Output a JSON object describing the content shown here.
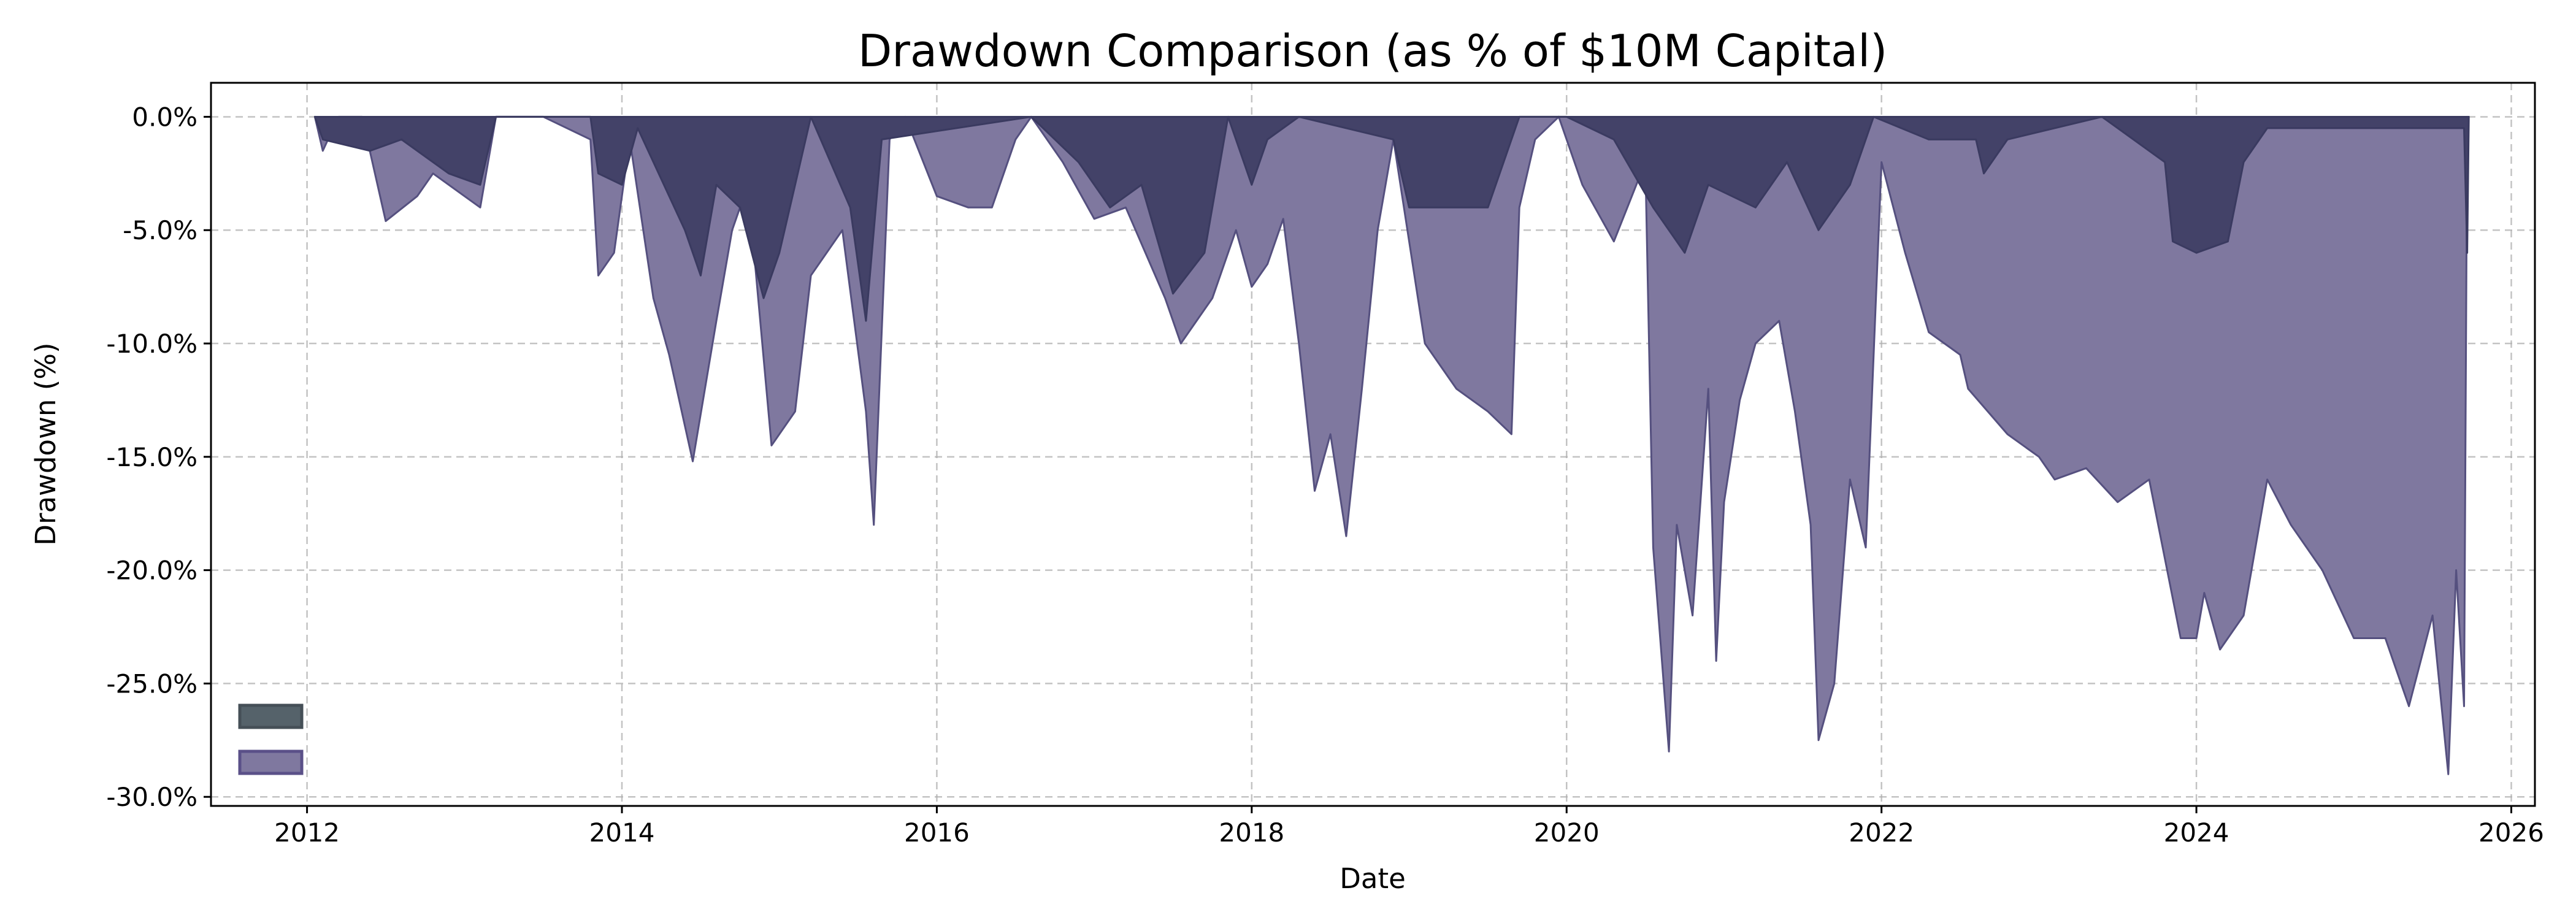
{
  "chart_data": {
    "type": "area",
    "title": "Drawdown Comparison (as % of $10M Capital)",
    "xlabel": "Date",
    "ylabel": "Drawdown (%)",
    "xlim": [
      2011.39,
      2026.15
    ],
    "ylim": [
      -30.4,
      1.5
    ],
    "grid": true,
    "legend_placement": "lower-left",
    "x_ticks": [
      2012,
      2014,
      2016,
      2018,
      2020,
      2022,
      2024,
      2026
    ],
    "x_tick_labels": [
      "2012",
      "2014",
      "2016",
      "2018",
      "2020",
      "2022",
      "2024",
      "2026"
    ],
    "y_ticks": [
      0,
      -5,
      -10,
      -15,
      -20,
      -25,
      -30
    ],
    "y_tick_labels": [
      "0.0%",
      "-5.0%",
      "-10.0%",
      "-15.0%",
      "-20.0%",
      "-25.0%",
      "-30.0%"
    ],
    "series": [
      {
        "color": "#7f789f",
        "edge": "#55507f",
        "points": [
          [
            2012.05,
            0
          ],
          [
            2012.1,
            -1.5
          ],
          [
            2012.2,
            0
          ],
          [
            2012.35,
            0
          ],
          [
            2012.5,
            -4.6
          ],
          [
            2012.7,
            -3.5
          ],
          [
            2012.8,
            -2.5
          ],
          [
            2013.0,
            -3.5
          ],
          [
            2013.1,
            -4.0
          ],
          [
            2013.2,
            0
          ],
          [
            2013.5,
            0
          ],
          [
            2013.8,
            -1
          ],
          [
            2013.85,
            -7
          ],
          [
            2013.95,
            -6
          ],
          [
            2014.05,
            -1
          ],
          [
            2014.2,
            -8
          ],
          [
            2014.3,
            -10.5
          ],
          [
            2014.45,
            -15.2
          ],
          [
            2014.6,
            -9
          ],
          [
            2014.7,
            -5
          ],
          [
            2014.8,
            -3
          ],
          [
            2014.95,
            -14.5
          ],
          [
            2015.1,
            -13
          ],
          [
            2015.2,
            -7
          ],
          [
            2015.4,
            -5
          ],
          [
            2015.55,
            -13
          ],
          [
            2015.6,
            -18
          ],
          [
            2015.7,
            -1
          ],
          [
            2015.8,
            0
          ],
          [
            2016.0,
            -3.5
          ],
          [
            2016.2,
            -4
          ],
          [
            2016.35,
            -4
          ],
          [
            2016.5,
            -1
          ],
          [
            2016.6,
            0
          ],
          [
            2016.8,
            -2
          ],
          [
            2017.0,
            -4.5
          ],
          [
            2017.2,
            -4
          ],
          [
            2017.45,
            -8
          ],
          [
            2017.55,
            -10
          ],
          [
            2017.75,
            -8
          ],
          [
            2017.9,
            -5
          ],
          [
            2018.0,
            -7.5
          ],
          [
            2018.1,
            -6.5
          ],
          [
            2018.2,
            -4.5
          ],
          [
            2018.3,
            -10
          ],
          [
            2018.4,
            -16.5
          ],
          [
            2018.5,
            -14
          ],
          [
            2018.6,
            -18.5
          ],
          [
            2018.7,
            -12
          ],
          [
            2018.8,
            -5
          ],
          [
            2018.9,
            -1
          ],
          [
            2019.1,
            -10
          ],
          [
            2019.3,
            -12
          ],
          [
            2019.5,
            -13
          ],
          [
            2019.65,
            -14
          ],
          [
            2019.7,
            -4
          ],
          [
            2019.8,
            -1
          ],
          [
            2019.95,
            0
          ],
          [
            2020.1,
            -3
          ],
          [
            2020.3,
            -5.5
          ],
          [
            2020.5,
            -2
          ],
          [
            2020.55,
            -19
          ],
          [
            2020.65,
            -28
          ],
          [
            2020.7,
            -18
          ],
          [
            2020.8,
            -22
          ],
          [
            2020.9,
            -12
          ],
          [
            2020.95,
            -24
          ],
          [
            2021.0,
            -17
          ],
          [
            2021.1,
            -12.5
          ],
          [
            2021.2,
            -10
          ],
          [
            2021.35,
            -9
          ],
          [
            2021.45,
            -13
          ],
          [
            2021.55,
            -18
          ],
          [
            2021.6,
            -27.5
          ],
          [
            2021.7,
            -25
          ],
          [
            2021.8,
            -16
          ],
          [
            2021.9,
            -19
          ],
          [
            2022.0,
            -2
          ],
          [
            2022.15,
            -6
          ],
          [
            2022.3,
            -9.5
          ],
          [
            2022.5,
            -10.5
          ],
          [
            2022.55,
            -12
          ],
          [
            2022.8,
            -14
          ],
          [
            2023.0,
            -15
          ],
          [
            2023.1,
            -16
          ],
          [
            2023.3,
            -15.5
          ],
          [
            2023.5,
            -17
          ],
          [
            2023.7,
            -16
          ],
          [
            2023.9,
            -23
          ],
          [
            2024.0,
            -23
          ],
          [
            2024.05,
            -21
          ],
          [
            2024.15,
            -23.5
          ],
          [
            2024.3,
            -22
          ],
          [
            2024.45,
            -16
          ],
          [
            2024.6,
            -18
          ],
          [
            2024.8,
            -20
          ],
          [
            2025.0,
            -23
          ],
          [
            2025.2,
            -23
          ],
          [
            2025.35,
            -26
          ],
          [
            2025.5,
            -22
          ],
          [
            2025.6,
            -29
          ],
          [
            2025.65,
            -20
          ],
          [
            2025.7,
            -26
          ],
          [
            2025.72,
            0
          ]
        ]
      },
      {
        "color": "#434268",
        "legend_color": "#55626a",
        "edge": "#3a3a60",
        "points": [
          [
            2012.05,
            0
          ],
          [
            2012.1,
            -1
          ],
          [
            2012.4,
            -1.5
          ],
          [
            2012.6,
            -1
          ],
          [
            2012.9,
            -2.5
          ],
          [
            2013.1,
            -3
          ],
          [
            2013.2,
            0
          ],
          [
            2013.8,
            0
          ],
          [
            2013.85,
            -2.5
          ],
          [
            2014.0,
            -3
          ],
          [
            2014.1,
            -0.5
          ],
          [
            2014.4,
            -5
          ],
          [
            2014.5,
            -7
          ],
          [
            2014.6,
            -3
          ],
          [
            2014.75,
            -4
          ],
          [
            2014.9,
            -8
          ],
          [
            2015.0,
            -6
          ],
          [
            2015.2,
            0
          ],
          [
            2015.45,
            -4
          ],
          [
            2015.55,
            -9
          ],
          [
            2015.65,
            -1
          ],
          [
            2016.6,
            0
          ],
          [
            2016.9,
            -2
          ],
          [
            2017.1,
            -4
          ],
          [
            2017.3,
            -3
          ],
          [
            2017.5,
            -7.8
          ],
          [
            2017.7,
            -6
          ],
          [
            2017.85,
            0
          ],
          [
            2018.0,
            -3
          ],
          [
            2018.1,
            -1
          ],
          [
            2018.3,
            0
          ],
          [
            2018.9,
            -1
          ],
          [
            2019.0,
            -4
          ],
          [
            2019.5,
            -4
          ],
          [
            2019.7,
            0
          ],
          [
            2020.0,
            0
          ],
          [
            2020.3,
            -1
          ],
          [
            2020.55,
            -4
          ],
          [
            2020.75,
            -6
          ],
          [
            2020.9,
            -3
          ],
          [
            2021.2,
            -4
          ],
          [
            2021.4,
            -2
          ],
          [
            2021.6,
            -5
          ],
          [
            2021.8,
            -3
          ],
          [
            2021.95,
            0
          ],
          [
            2022.3,
            -1
          ],
          [
            2022.6,
            -1
          ],
          [
            2022.65,
            -2.5
          ],
          [
            2022.8,
            -1
          ],
          [
            2023.4,
            0
          ],
          [
            2023.8,
            -2
          ],
          [
            2023.85,
            -5.5
          ],
          [
            2024.0,
            -6
          ],
          [
            2024.2,
            -5.5
          ],
          [
            2024.3,
            -2
          ],
          [
            2024.45,
            -0.5
          ],
          [
            2025.7,
            -0.5
          ],
          [
            2025.72,
            -6
          ],
          [
            2025.73,
            0
          ]
        ]
      }
    ]
  }
}
